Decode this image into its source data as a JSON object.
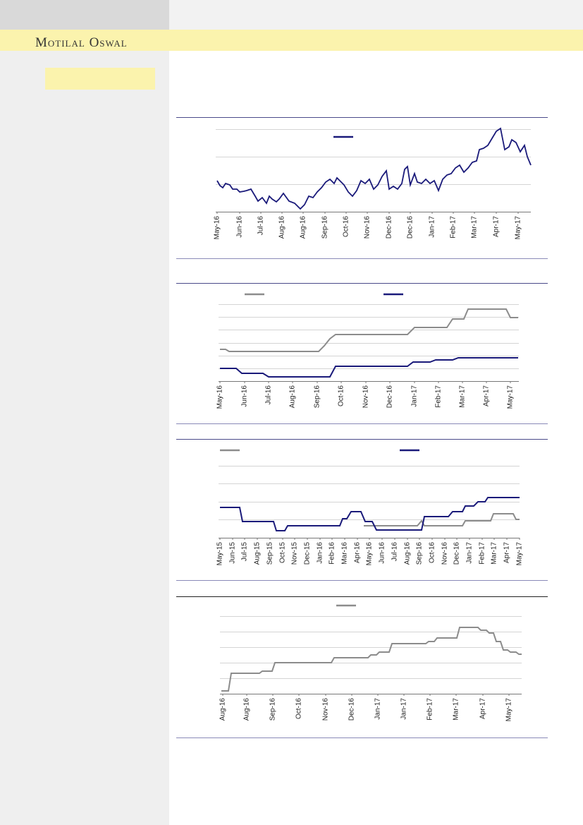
{
  "header": {
    "brand": "Motilal Oswal"
  },
  "chart_data": [
    {
      "type": "line",
      "grid": true,
      "xlim": [
        0,
        450
      ],
      "ylim": [
        0,
        120
      ],
      "yticks": [
        0,
        39,
        78,
        117
      ],
      "xticks": [
        {
          "value": 0,
          "label": "May-16"
        },
        {
          "value": 32,
          "label": "Jun-16"
        },
        {
          "value": 62,
          "label": "Jul-16"
        },
        {
          "value": 92,
          "label": "Aug-16"
        },
        {
          "value": 122,
          "label": "Aug-16"
        },
        {
          "value": 153,
          "label": "Sep-16"
        },
        {
          "value": 183,
          "label": "Oct-16"
        },
        {
          "value": 213,
          "label": "Nov-16"
        },
        {
          "value": 244,
          "label": "Dec-16"
        },
        {
          "value": 274,
          "label": "Dec-16"
        },
        {
          "value": 305,
          "label": "Jan-17"
        },
        {
          "value": 335,
          "label": "Feb-17"
        },
        {
          "value": 365,
          "label": "Mar-17"
        },
        {
          "value": 396,
          "label": "Apr-17"
        },
        {
          "value": 427,
          "label": "May-17"
        }
      ],
      "series": [
        {
          "color": "#1a1a7a",
          "x": [
            0,
            4,
            8,
            12,
            18,
            22,
            28,
            32,
            38,
            42,
            48,
            54,
            58,
            64,
            70,
            74,
            78,
            84,
            88,
            94,
            102,
            110,
            118,
            124,
            130,
            136,
            142,
            148,
            154,
            160,
            166,
            170,
            176,
            180,
            186,
            192,
            198,
            204,
            210,
            216,
            222,
            228,
            234,
            240,
            244,
            250,
            256,
            262,
            266,
            270,
            274,
            280,
            284,
            290,
            296,
            302,
            308,
            314,
            320,
            326,
            332,
            338,
            344,
            350,
            356,
            362,
            368,
            372,
            378,
            384,
            390,
            396,
            402,
            408,
            414,
            418,
            424,
            430,
            436,
            440,
            445
          ],
          "values": [
            44,
            37,
            34,
            40,
            38,
            32,
            32,
            28,
            29,
            30,
            32,
            22,
            15,
            20,
            12,
            22,
            18,
            14,
            18,
            26,
            15,
            12,
            4,
            10,
            22,
            20,
            28,
            34,
            42,
            46,
            40,
            48,
            42,
            38,
            28,
            22,
            30,
            44,
            40,
            46,
            32,
            38,
            50,
            58,
            32,
            36,
            32,
            40,
            60,
            64,
            38,
            54,
            42,
            40,
            46,
            40,
            44,
            30,
            46,
            52,
            54,
            62,
            66,
            56,
            62,
            70,
            72,
            88,
            90,
            94,
            104,
            114,
            118,
            88,
            92,
            102,
            98,
            85,
            94,
            78,
            66
          ]
        }
      ]
    },
    {
      "type": "line",
      "grid": true,
      "xlim": [
        0,
        424
      ],
      "ylim": [
        0,
        109
      ],
      "yticks": [
        0,
        18,
        36,
        54,
        73,
        91,
        109
      ],
      "xticks": [
        {
          "value": 0,
          "label": "May-16"
        },
        {
          "value": 35,
          "label": "Jun-16"
        },
        {
          "value": 69,
          "label": "Jul-16"
        },
        {
          "value": 103,
          "label": "Aug-16"
        },
        {
          "value": 138,
          "label": "Sep-16"
        },
        {
          "value": 172,
          "label": "Oct-16"
        },
        {
          "value": 207,
          "label": "Nov-16"
        },
        {
          "value": 241,
          "label": "Dec-16"
        },
        {
          "value": 276,
          "label": "Jan-17"
        },
        {
          "value": 310,
          "label": "Feb-17"
        },
        {
          "value": 344,
          "label": "Mar-17"
        },
        {
          "value": 378,
          "label": "Apr-17"
        },
        {
          "value": 412,
          "label": "May-17"
        }
      ],
      "series": [
        {
          "color": "#8c8c8c",
          "x": [
            0,
            8,
            13,
            140,
            148,
            156,
            164,
            266,
            276,
            322,
            330,
            346,
            352,
            406,
            412,
            423
          ],
          "values": [
            45,
            45,
            42,
            42,
            50,
            60,
            66,
            66,
            76,
            76,
            88,
            88,
            102,
            102,
            90,
            90
          ]
        },
        {
          "color": "#1a1a7a",
          "x": [
            0,
            23,
            31,
            61,
            69,
            156,
            164,
            266,
            274,
            298,
            306,
            330,
            338,
            423
          ],
          "values": [
            18,
            18,
            11,
            11,
            6,
            6,
            21,
            21,
            27,
            27,
            30,
            30,
            33,
            33
          ]
        }
      ]
    },
    {
      "type": "line",
      "grid": true,
      "xlim": [
        0,
        425
      ],
      "ylim": [
        0,
        122
      ],
      "yticks": [
        0,
        26,
        51,
        77,
        102
      ],
      "xticks": [
        {
          "value": 0,
          "label": "May-15"
        },
        {
          "value": 18,
          "label": "Jun-15"
        },
        {
          "value": 35,
          "label": "Jul-15"
        },
        {
          "value": 53,
          "label": "Aug-15"
        },
        {
          "value": 71,
          "label": "Sep-15"
        },
        {
          "value": 89,
          "label": "Oct-15"
        },
        {
          "value": 106,
          "label": "Nov-15"
        },
        {
          "value": 124,
          "label": "Dec-15"
        },
        {
          "value": 142,
          "label": "Jan-16"
        },
        {
          "value": 159,
          "label": "Feb-16"
        },
        {
          "value": 177,
          "label": "Mar-16"
        },
        {
          "value": 195,
          "label": "Apr-16"
        },
        {
          "value": 212,
          "label": "May-16"
        },
        {
          "value": 230,
          "label": "Jun-16"
        },
        {
          "value": 248,
          "label": "Jul-16"
        },
        {
          "value": 266,
          "label": "Aug-16"
        },
        {
          "value": 283,
          "label": "Sep-16"
        },
        {
          "value": 301,
          "label": "Oct-16"
        },
        {
          "value": 319,
          "label": "Nov-16"
        },
        {
          "value": 336,
          "label": "Dec-16"
        },
        {
          "value": 354,
          "label": "Jan-17"
        },
        {
          "value": 372,
          "label": "Feb-17"
        },
        {
          "value": 389,
          "label": "Mar-17"
        },
        {
          "value": 407,
          "label": "Apr-17"
        },
        {
          "value": 425,
          "label": "May-17"
        }
      ],
      "series": [
        {
          "color": "#8c8c8c",
          "x": [
            204,
            280,
            286,
            290,
            344,
            348,
            384,
            388,
            416,
            420,
            425
          ],
          "values": [
            17,
            17,
            24,
            17,
            17,
            24,
            24,
            34,
            34,
            26,
            26
          ]
        },
        {
          "color": "#1a1a7a",
          "x": [
            0,
            28,
            32,
            76,
            80,
            92,
            96,
            170,
            174,
            180,
            186,
            200,
            206,
            216,
            222,
            286,
            290,
            324,
            330,
            344,
            348,
            360,
            366,
            376,
            380,
            425
          ],
          "values": [
            43,
            43,
            23,
            23,
            10,
            10,
            17,
            17,
            27,
            27,
            37,
            37,
            23,
            23,
            11,
            11,
            30,
            30,
            37,
            37,
            45,
            45,
            51,
            51,
            57,
            57
          ]
        }
      ]
    },
    {
      "type": "line",
      "grid": true,
      "xlim": [
        0,
        426
      ],
      "ylim": [
        0,
        122
      ],
      "yticks": [
        0,
        22,
        44,
        66,
        88,
        110
      ],
      "xticks": [
        {
          "value": 2,
          "label": "Aug-16"
        },
        {
          "value": 36,
          "label": "Aug-16"
        },
        {
          "value": 73,
          "label": "Sep-16"
        },
        {
          "value": 110,
          "label": "Oct-16"
        },
        {
          "value": 148,
          "label": "Nov-16"
        },
        {
          "value": 185,
          "label": "Dec-16"
        },
        {
          "value": 222,
          "label": "Jan-17"
        },
        {
          "value": 259,
          "label": "Jan-17"
        },
        {
          "value": 296,
          "label": "Feb-17"
        },
        {
          "value": 333,
          "label": "Mar-17"
        },
        {
          "value": 371,
          "label": "Apr-17"
        },
        {
          "value": 408,
          "label": "May-17"
        }
      ],
      "series": [
        {
          "color": "#8c8c8c",
          "x": [
            0,
            10,
            14,
            54,
            58,
            72,
            76,
            156,
            160,
            208,
            212,
            220,
            224,
            238,
            242,
            290,
            294,
            302,
            306,
            334,
            338,
            364,
            368,
            376,
            380,
            386,
            390,
            396,
            400,
            406,
            410,
            418,
            422,
            426
          ],
          "values": [
            4,
            4,
            29,
            29,
            32,
            32,
            44,
            44,
            51,
            51,
            55,
            55,
            59,
            59,
            71,
            71,
            74,
            74,
            79,
            79,
            94,
            94,
            90,
            90,
            86,
            86,
            74,
            74,
            62,
            62,
            59,
            59,
            56,
            56
          ]
        }
      ]
    }
  ]
}
